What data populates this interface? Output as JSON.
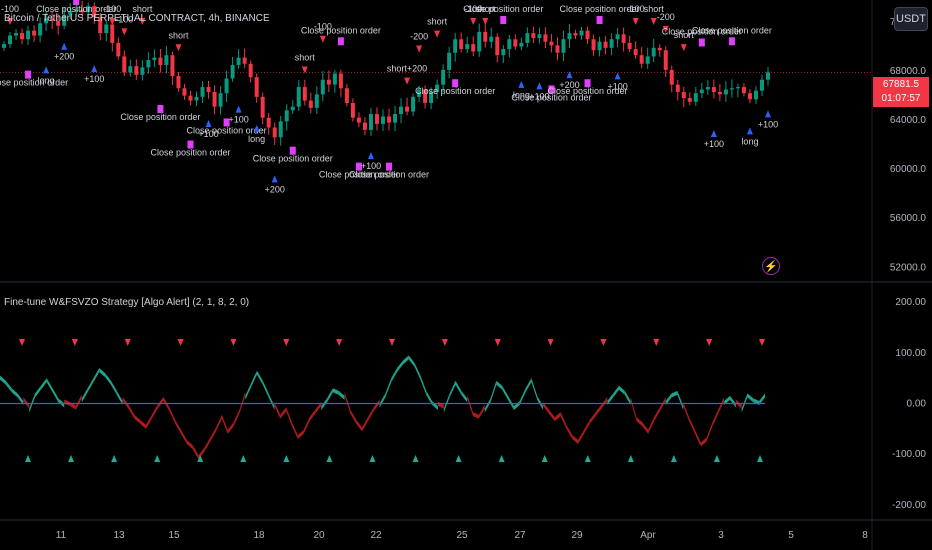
{
  "header": {
    "symbol_label": "Bitcoin / TetherUS PERPETUAL CONTRACT, 4h, BINANCE",
    "currency_button": "USDT"
  },
  "price_badge": {
    "price": "67881.5",
    "countdown": "01:07:57",
    "color": "#f23645"
  },
  "indicator": {
    "label": "Fine-tune W&FSVZO Strategy [Algo Alert] (2, 1, 8, 2, 0)"
  },
  "colors": {
    "up": "#089981",
    "down": "#f23645",
    "signal_buy": "#2962ff",
    "signal_close": "#e040fb",
    "osc_up": "#22ab94",
    "osc_down": "#b71c1c",
    "zero_line": "#2962ff",
    "background": "#000000"
  },
  "icons": {
    "alert": "lightning-bolt-icon"
  },
  "chart_data": [
    {
      "type": "candlestick",
      "y_axis_ticks": [
        "72000.0",
        "68000.0",
        "64000.0",
        "60000.0",
        "56000.0",
        "52000.0"
      ],
      "ylim": [
        50800,
        73800
      ],
      "x_ticks": [
        "11",
        "13",
        "15",
        "18",
        "20",
        "22",
        "25",
        "27",
        "29",
        "Apr",
        "3",
        "5",
        "8"
      ],
      "last_price": 67881.5,
      "grid": false,
      "series": {
        "close": [
          70200,
          70900,
          71100,
          70600,
          71300,
          70900,
          71900,
          72300,
          72100,
          71700,
          72600,
          72900,
          73000,
          72800,
          73300,
          72400,
          71100,
          71800,
          70300,
          69200,
          67900,
          68400,
          67700,
          68300,
          68900,
          69100,
          68500,
          69300,
          67600,
          66600,
          66000,
          65600,
          65900,
          66700,
          66300,
          65100,
          66200,
          67400,
          68500,
          69100,
          68600,
          67500,
          65900,
          64200,
          63400,
          62600,
          63900,
          64800,
          65100,
          66700,
          65600,
          65000,
          66100,
          67300,
          66900,
          67800,
          66600,
          65400,
          64200,
          63800,
          63200,
          64500,
          63700,
          64300,
          63800,
          64500,
          65100,
          64700,
          65900,
          66500,
          65400,
          66300,
          66900,
          68100,
          69500,
          70600,
          69800,
          70200,
          69600,
          71200,
          70400,
          70800,
          69300,
          69800,
          70600,
          70000,
          70300,
          71100,
          70700,
          71000,
          70400,
          70100,
          69500,
          70600,
          71100,
          70900,
          71300,
          70600,
          69700,
          70400,
          69900,
          70600,
          71000,
          70300,
          69800,
          69300,
          68600,
          69200,
          69900,
          69700,
          68100,
          66900,
          66300,
          65800,
          65500,
          66200,
          66500,
          66700,
          66300,
          66100,
          66500,
          66600,
          66700,
          66200,
          65700,
          66400,
          67300,
          67900
        ],
        "annotations": [
          {
            "text": "-100",
            "kind": "short"
          },
          {
            "text": "Close position order",
            "kind": "close"
          },
          {
            "text": "long",
            "kind": "long"
          },
          {
            "text": "+200",
            "kind": "long"
          },
          {
            "text": "Close position order",
            "kind": "close"
          },
          {
            "text": "+100",
            "kind": "long"
          },
          {
            "text": "-100",
            "kind": "short"
          },
          {
            "text": "-100",
            "kind": "short"
          },
          {
            "text": "short",
            "kind": "short"
          },
          {
            "text": "Close position order",
            "kind": "close"
          },
          {
            "text": "short",
            "kind": "short"
          },
          {
            "text": "Close position order",
            "kind": "close"
          },
          {
            "text": "+100",
            "kind": "long"
          },
          {
            "text": "Close position order",
            "kind": "close"
          },
          {
            "text": "+100",
            "kind": "long"
          },
          {
            "text": "long",
            "kind": "long"
          },
          {
            "text": "+200",
            "kind": "long"
          },
          {
            "text": "Close position order",
            "kind": "close"
          },
          {
            "text": "short",
            "kind": "short"
          },
          {
            "text": "-100",
            "kind": "short"
          },
          {
            "text": "Close position order",
            "kind": "close"
          },
          {
            "text": "Close position order",
            "kind": "close"
          },
          {
            "text": "+100",
            "kind": "long"
          },
          {
            "text": "Close position order",
            "kind": "close"
          },
          {
            "text": "short+200",
            "kind": "short"
          },
          {
            "text": "-200",
            "kind": "short"
          },
          {
            "text": "short",
            "kind": "short"
          },
          {
            "text": "Close position order",
            "kind": "close"
          },
          {
            "text": "-100",
            "kind": "short"
          },
          {
            "text": "short",
            "kind": "short"
          },
          {
            "text": "Close position order",
            "kind": "close"
          },
          {
            "text": "long",
            "kind": "long"
          },
          {
            "text": "+100",
            "kind": "long"
          },
          {
            "text": "Close position order",
            "kind": "close"
          },
          {
            "text": "+200",
            "kind": "long"
          },
          {
            "text": "Close position order",
            "kind": "close"
          },
          {
            "text": "Close position order",
            "kind": "close"
          },
          {
            "text": "+100",
            "kind": "long"
          },
          {
            "text": "-100",
            "kind": "short"
          },
          {
            "text": "short",
            "kind": "short"
          },
          {
            "text": "-200",
            "kind": "short"
          },
          {
            "text": "short",
            "kind": "short"
          },
          {
            "text": "Close position order",
            "kind": "close"
          },
          {
            "text": "+100",
            "kind": "long"
          },
          {
            "text": "Close position order",
            "kind": "close"
          },
          {
            "text": "long",
            "kind": "long"
          },
          {
            "text": "+100",
            "kind": "long"
          }
        ]
      }
    },
    {
      "type": "area",
      "title": "Fine-tune W&FSVZO Strategy [Algo Alert] (2, 1, 8, 2, 0)",
      "y_axis_ticks": [
        "200.00",
        "100.00",
        "0.00",
        "-100.00",
        "-200.00"
      ],
      "ylim": [
        -230,
        230
      ],
      "zero_line": 0,
      "series": [
        {
          "name": "oscillator",
          "values": [
            55,
            45,
            30,
            20,
            5,
            -10,
            20,
            35,
            50,
            30,
            10,
            0,
            -5,
            -12,
            10,
            30,
            50,
            70,
            60,
            45,
            25,
            5,
            -10,
            -30,
            -40,
            -50,
            -30,
            -10,
            5,
            -15,
            -40,
            -60,
            -80,
            -90,
            -110,
            -95,
            -75,
            -55,
            -30,
            -60,
            -45,
            -20,
            15,
            40,
            65,
            45,
            20,
            -5,
            -30,
            -15,
            -45,
            -70,
            -60,
            -35,
            -20,
            -5,
            10,
            30,
            25,
            15,
            -20,
            -40,
            -55,
            -35,
            -15,
            0,
            20,
            50,
            70,
            85,
            95,
            80,
            55,
            25,
            5,
            -5,
            -10,
            20,
            45,
            25,
            10,
            -25,
            -30,
            -10,
            10,
            45,
            35,
            15,
            -5,
            5,
            30,
            50,
            15,
            -5,
            -20,
            -35,
            -25,
            -50,
            -70,
            -80,
            -60,
            -40,
            -25,
            -10,
            5,
            20,
            35,
            25,
            5,
            -35,
            -45,
            -60,
            -35,
            -15,
            5,
            20,
            25,
            -5,
            -35,
            -60,
            -85,
            -75,
            -45,
            -20,
            5,
            15,
            0,
            -10,
            20,
            10,
            5,
            20
          ]
        }
      ],
      "markers": [
        {
          "type": "sell",
          "count": 15
        },
        {
          "type": "buy",
          "count": 18
        }
      ]
    }
  ]
}
